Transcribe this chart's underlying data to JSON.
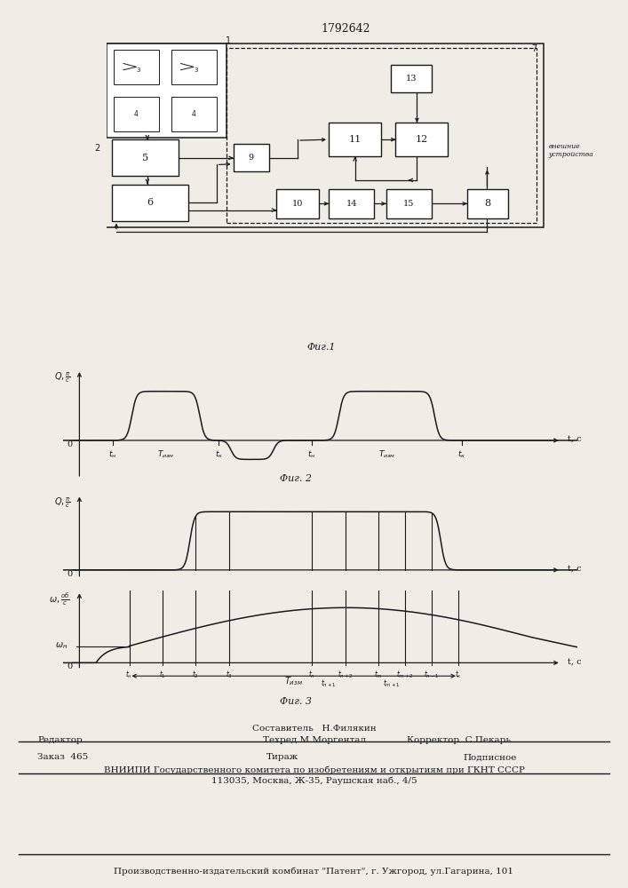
{
  "title": "1792642",
  "fig1_caption": "Φиг.1",
  "fig2_caption": "Φиг. 2",
  "fig3_caption": "Φиг. 3",
  "background_color": "#f0ede6",
  "line_color": "#1a1a1a",
  "footer_text_1": "Составитель   Н.Филякин",
  "footer_text_2": "Техред М.Моргентал",
  "footer_text_3": "Корректор  С.Пекарь",
  "footer_text_4": "Редактор",
  "footer_text_5": "Заказ  465",
  "footer_text_6": "Тираж",
  "footer_text_7": "Подписное",
  "footer_text_8": "ВНИИПИ Государственного комитета по изобретениям и открытиям при ГКНТ СССР",
  "footer_text_9": "113035, Москва, Ж-35, Раушская наб., 4/5",
  "footer_text_10": "Производственно-издательский комбинат \"Патент\", г. Ужгород, ул.Гагарина, 101"
}
